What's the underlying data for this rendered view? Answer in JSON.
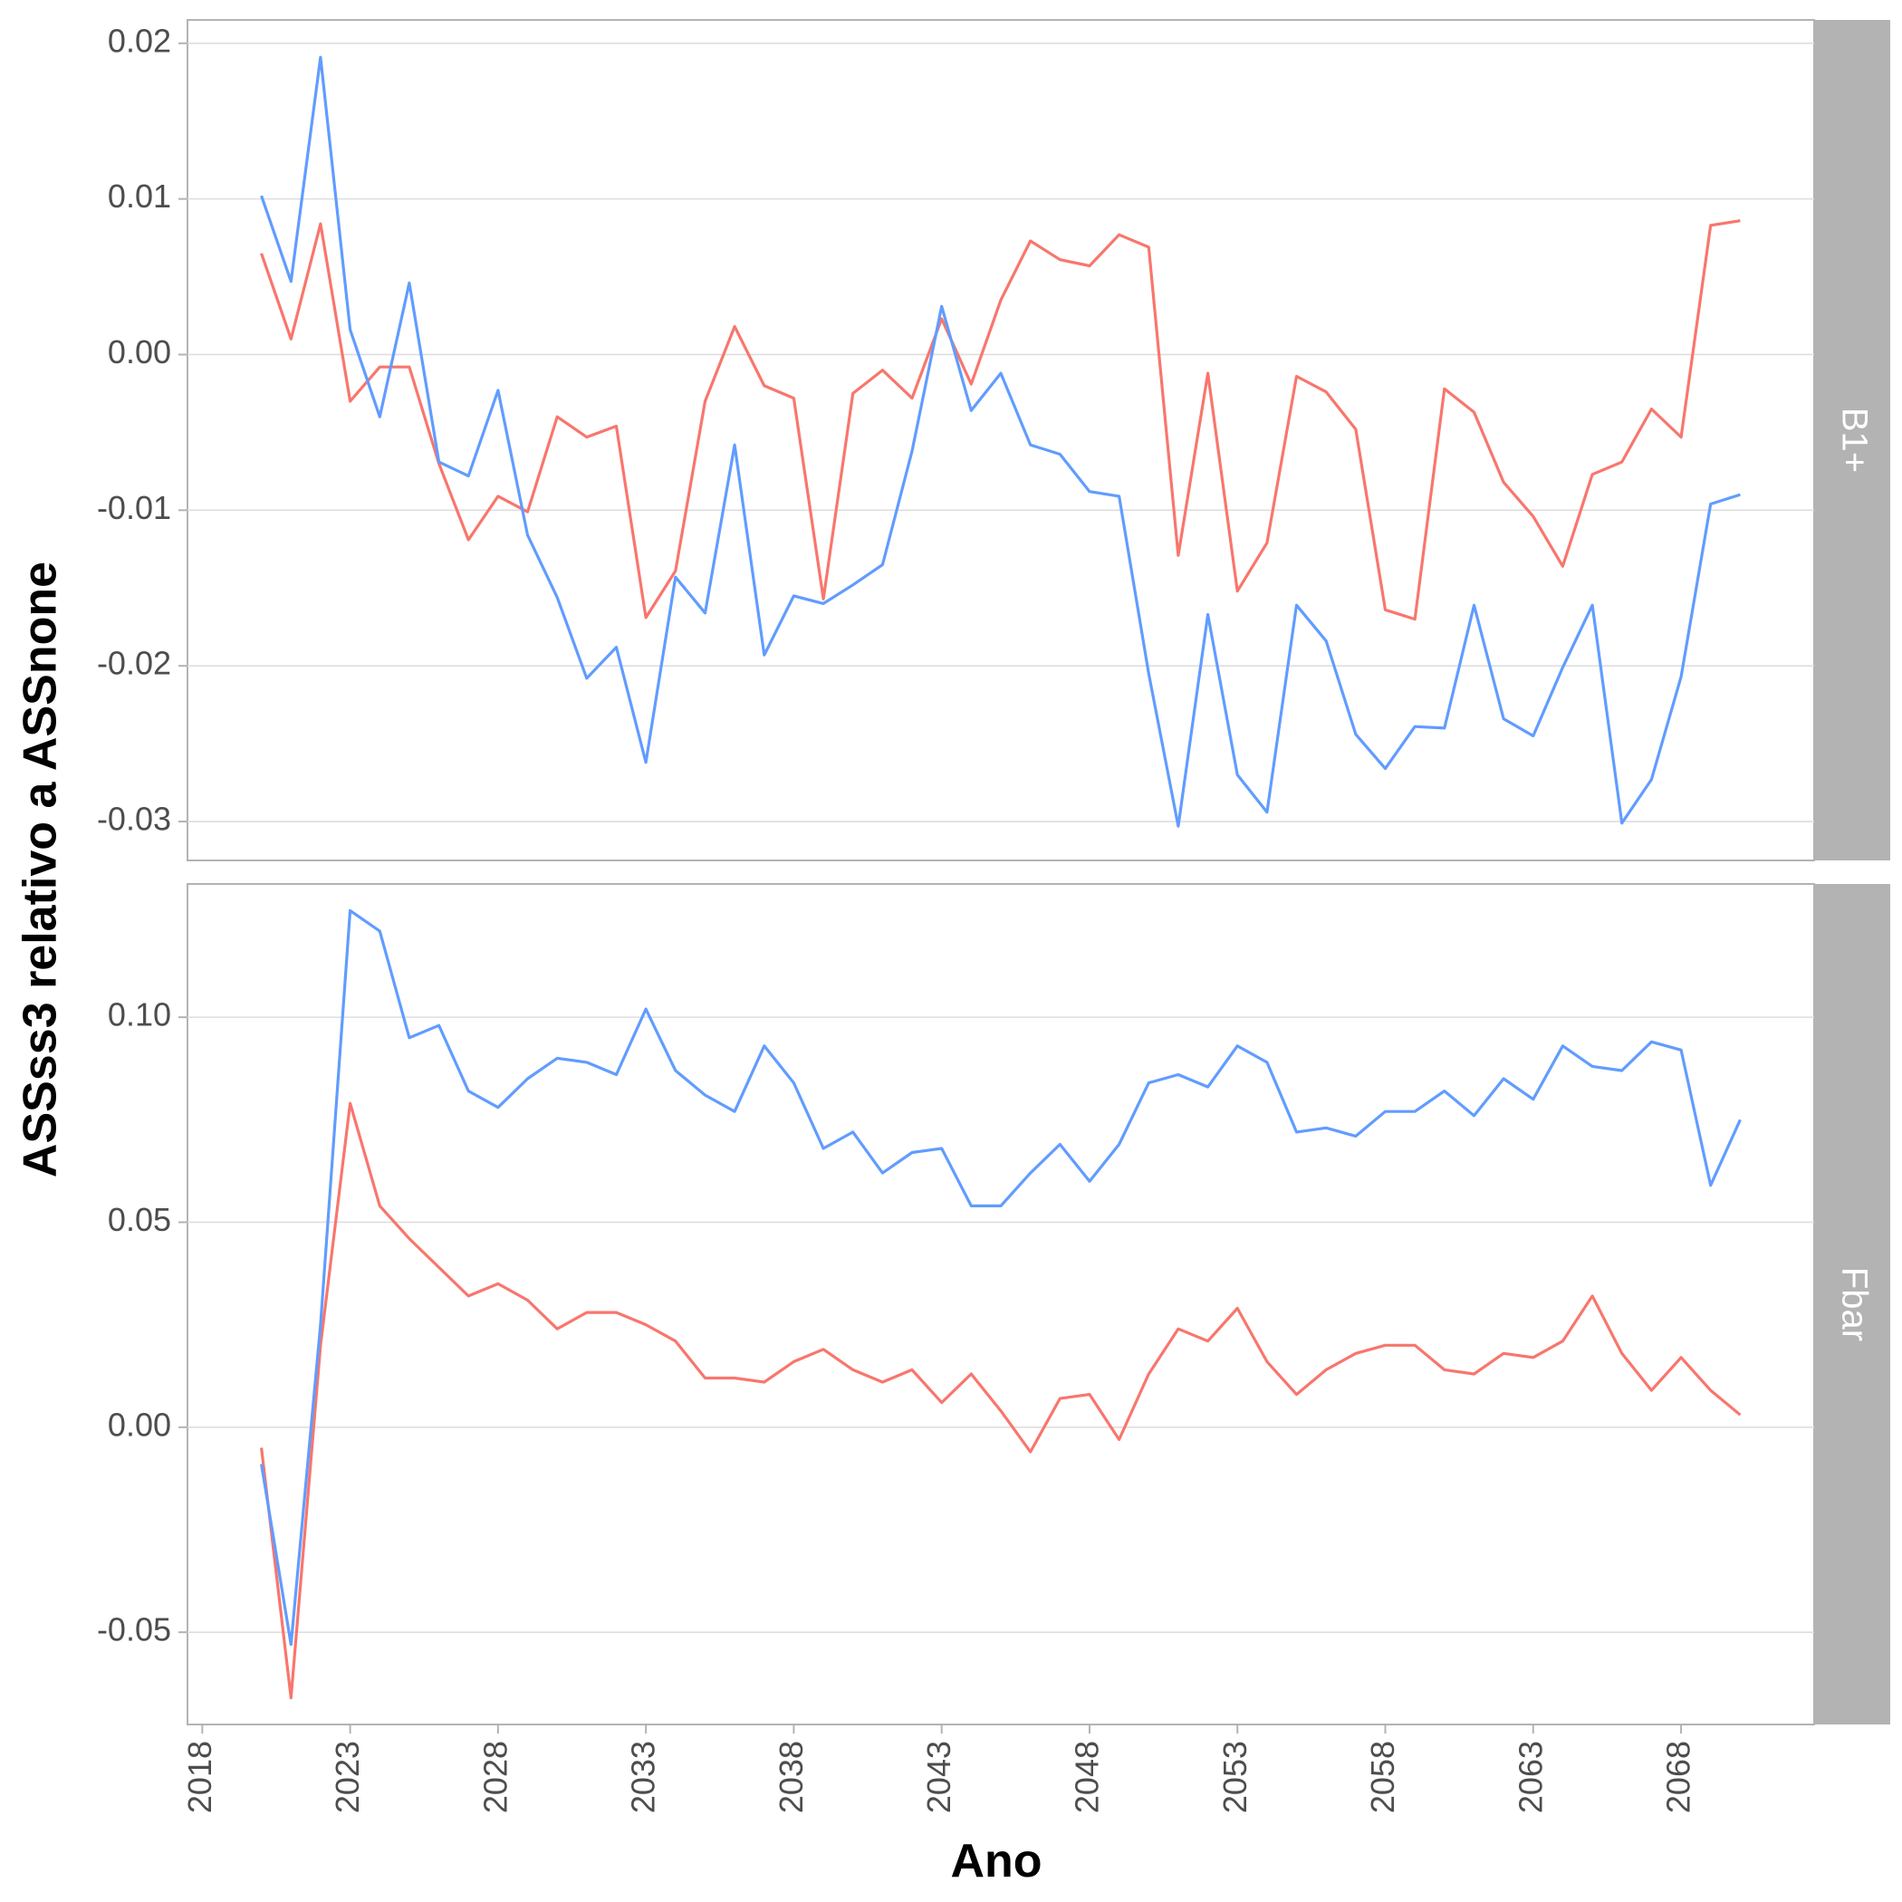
{
  "chart_data": {
    "type": "line",
    "xlabel": "Ano",
    "ylabel": "ASSss3 relativo a ASSnone",
    "x_ticks": [
      2018,
      2023,
      2028,
      2033,
      2038,
      2043,
      2048,
      2053,
      2058,
      2063,
      2068
    ],
    "xlim": [
      2017.5,
      2072.5
    ],
    "legend": "none",
    "grid": true,
    "series_colors": [
      "#f8766d",
      "#619cff"
    ],
    "x": [
      2020,
      2021,
      2022,
      2023,
      2024,
      2025,
      2026,
      2027,
      2028,
      2029,
      2030,
      2031,
      2032,
      2033,
      2034,
      2035,
      2036,
      2037,
      2038,
      2039,
      2040,
      2041,
      2042,
      2043,
      2044,
      2045,
      2046,
      2047,
      2048,
      2049,
      2050,
      2051,
      2052,
      2053,
      2054,
      2055,
      2056,
      2057,
      2058,
      2059,
      2060,
      2061,
      2062,
      2063,
      2064,
      2065,
      2066,
      2067,
      2068,
      2069,
      2070
    ],
    "panels": [
      {
        "strip_label": "B1+",
        "ylim": [
          -0.0325,
          0.0215
        ],
        "y_ticks": [
          {
            "value": -0.03,
            "label": "-0.03"
          },
          {
            "value": -0.02,
            "label": "-0.02"
          },
          {
            "value": -0.01,
            "label": "-0.01"
          },
          {
            "value": 0.0,
            "label": "0.00"
          },
          {
            "value": 0.01,
            "label": "0.01"
          },
          {
            "value": 0.02,
            "label": "0.02"
          }
        ],
        "series": [
          {
            "color": "#f8766d",
            "values": [
              0.0065,
              0.001,
              0.0084,
              -0.003,
              -0.0008,
              -0.0008,
              -0.007,
              -0.0119,
              -0.0091,
              -0.0101,
              -0.004,
              -0.0053,
              -0.0046,
              -0.0169,
              -0.0139,
              -0.003,
              0.0018,
              -0.002,
              -0.0028,
              -0.0157,
              -0.0025,
              -0.001,
              -0.0028,
              0.0023,
              -0.0019,
              0.0035,
              0.0073,
              0.0061,
              0.0057,
              0.0077,
              0.0069,
              -0.0129,
              -0.0012,
              -0.0152,
              -0.0121,
              -0.0014,
              -0.0024,
              -0.0048,
              -0.0164,
              -0.017,
              -0.0022,
              -0.0037,
              -0.0082,
              -0.0104,
              -0.0136,
              -0.0077,
              -0.0069,
              -0.0035,
              -0.0053,
              0.0083,
              0.0086
            ]
          },
          {
            "color": "#619cff",
            "values": [
              0.0102,
              0.0047,
              0.0191,
              0.0016,
              -0.004,
              0.0046,
              -0.0069,
              -0.0078,
              -0.0023,
              -0.0116,
              -0.0156,
              -0.0208,
              -0.0188,
              -0.0262,
              -0.0143,
              -0.0166,
              -0.0058,
              -0.0193,
              -0.0155,
              -0.016,
              -0.0148,
              -0.0135,
              -0.0062,
              0.0031,
              -0.0036,
              -0.0012,
              -0.0058,
              -0.0064,
              -0.0088,
              -0.0091,
              -0.0205,
              -0.0303,
              -0.0167,
              -0.027,
              -0.0294,
              -0.0161,
              -0.0184,
              -0.0244,
              -0.0266,
              -0.0239,
              -0.024,
              -0.0161,
              -0.0234,
              -0.0245,
              -0.0201,
              -0.0161,
              -0.0301,
              -0.0273,
              -0.0207,
              -0.0096,
              -0.009
            ]
          }
        ]
      },
      {
        "strip_label": "Fbar",
        "ylim": [
          -0.0725,
          0.1325
        ],
        "y_ticks": [
          {
            "value": -0.05,
            "label": "-0.05"
          },
          {
            "value": 0.0,
            "label": "0.00"
          },
          {
            "value": 0.05,
            "label": "0.05"
          },
          {
            "value": 0.1,
            "label": "0.10"
          }
        ],
        "series": [
          {
            "color": "#f8766d",
            "values": [
              -0.005,
              -0.066,
              0.02,
              0.079,
              0.054,
              0.046,
              0.039,
              0.032,
              0.035,
              0.031,
              0.024,
              0.028,
              0.028,
              0.025,
              0.021,
              0.012,
              0.012,
              0.011,
              0.016,
              0.019,
              0.014,
              0.011,
              0.014,
              0.006,
              0.013,
              0.004,
              -0.006,
              0.007,
              0.008,
              -0.003,
              0.013,
              0.024,
              0.021,
              0.029,
              0.016,
              0.008,
              0.014,
              0.018,
              0.02,
              0.02,
              0.014,
              0.013,
              0.018,
              0.017,
              0.021,
              0.032,
              0.018,
              0.009,
              0.017,
              0.009,
              0.003
            ]
          },
          {
            "color": "#619cff",
            "values": [
              -0.009,
              -0.053,
              0.025,
              0.126,
              0.121,
              0.095,
              0.098,
              0.082,
              0.078,
              0.085,
              0.09,
              0.089,
              0.086,
              0.102,
              0.087,
              0.081,
              0.077,
              0.093,
              0.084,
              0.068,
              0.072,
              0.062,
              0.067,
              0.068,
              0.054,
              0.054,
              0.062,
              0.069,
              0.06,
              0.069,
              0.084,
              0.086,
              0.083,
              0.093,
              0.089,
              0.072,
              0.073,
              0.071,
              0.077,
              0.077,
              0.082,
              0.076,
              0.085,
              0.08,
              0.093,
              0.088,
              0.087,
              0.094,
              0.092,
              0.059,
              0.075
            ]
          }
        ]
      }
    ]
  }
}
